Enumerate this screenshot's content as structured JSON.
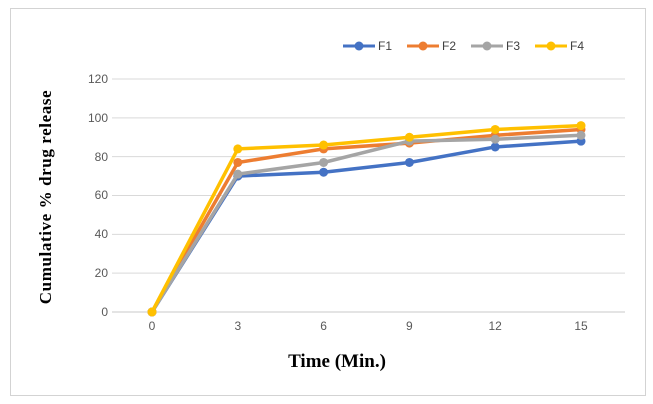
{
  "chart_data": {
    "type": "line",
    "x": [
      0,
      3,
      6,
      9,
      12,
      15
    ],
    "series": [
      {
        "name": "F1",
        "color": "#4472C4",
        "values": [
          0,
          70,
          72,
          77,
          85,
          88
        ]
      },
      {
        "name": "F2",
        "color": "#ED7D31",
        "values": [
          0,
          77,
          84,
          87,
          91,
          94
        ]
      },
      {
        "name": "F3",
        "color": "#A5A5A5",
        "values": [
          0,
          71,
          77,
          88,
          89,
          91
        ]
      },
      {
        "name": "F4",
        "color": "#FFC000",
        "values": [
          0,
          84,
          86,
          90,
          94,
          96
        ]
      }
    ],
    "xlabel": "Time (Min.)",
    "ylabel": "Cumulative % drug release",
    "xticks": [
      0,
      3,
      6,
      9,
      12,
      15
    ],
    "yticks": [
      0,
      20,
      40,
      60,
      80,
      100,
      120
    ],
    "xlim": [
      0,
      15
    ],
    "ylim": [
      0,
      120
    ],
    "grid": "horizontal",
    "legend_position": "top",
    "marker": "circle"
  },
  "styles": {
    "background": "#ffffff",
    "frame_border_color": "#d3d3d3",
    "grid_color": "#d9d9d9",
    "axis_line_color": "#c9c9c9",
    "tick_label_color": "#595959",
    "legend_text_color": "#404040",
    "axis_title_color": "#000000"
  }
}
